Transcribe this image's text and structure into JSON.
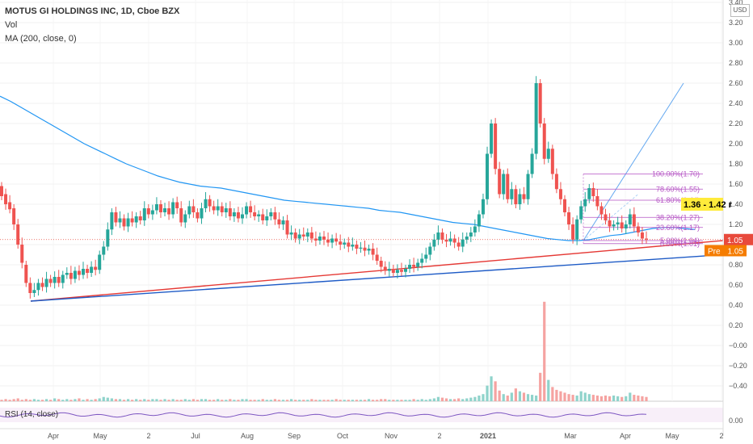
{
  "legend": {
    "title": "MOTUS GI HOLDINGS INC, 1D, Cboe BZX",
    "vol": "Vol",
    "ma": "MA (200, close, 0)"
  },
  "rsi_label": "RSI (14, close)",
  "currency": "USD",
  "colors": {
    "up": "#26a69a",
    "down": "#ef5350",
    "ma": "#2196f3",
    "fib": "#b553c4",
    "red_trend": "#e53935",
    "blue_trend": "#1e5bc6",
    "price_box": "#e84a3c",
    "pre_box": "#f57c00",
    "highlight_box": "#ffeb3b"
  },
  "chart_data": {
    "type": "candlestick",
    "y_axis_ticks": [
      "3.40",
      "3.20",
      "3.00",
      "2.80",
      "2.60",
      "2.40",
      "2.20",
      "2.00",
      "1.80",
      "1.60",
      "1.40",
      "1.20",
      "1.00",
      "0.80",
      "0.60",
      "0.40",
      "0.20",
      "−0.00",
      "−0.20",
      "−0.40"
    ],
    "rsi_axis_ticks": [
      "0.00"
    ],
    "x_axis_ticks": [
      "Apr",
      "May",
      "2",
      "Jul",
      "Aug",
      "Sep",
      "Oct",
      "Nov",
      "2",
      "2021",
      "Mar",
      "Apr",
      "May",
      "2"
    ],
    "current_price_label": "1.05",
    "pre_label": "Pre",
    "pre_value": "1.05",
    "highlight_label": "1.36 - 1.42 r",
    "fib_levels": [
      "100.00%(1.70)",
      "78.60%(1.55)",
      "61.80%(1.44)",
      "38.20%(1.27)",
      "23.60%(1.17)",
      "5.00%(1.04)",
      "0.00%(1.01)"
    ],
    "fib_values": [
      1.7,
      1.55,
      1.44,
      1.27,
      1.17,
      1.04,
      1.01
    ],
    "candles": [
      [
        1.58,
        1.48
      ],
      [
        1.5,
        1.4
      ],
      [
        1.42,
        1.35
      ],
      [
        1.36,
        1.2
      ],
      [
        1.2,
        1.0
      ],
      [
        1.0,
        0.82
      ],
      [
        0.8,
        0.62
      ],
      [
        0.62,
        0.52
      ],
      [
        0.52,
        0.55
      ],
      [
        0.55,
        0.62
      ],
      [
        0.62,
        0.58
      ],
      [
        0.58,
        0.66
      ],
      [
        0.66,
        0.62
      ],
      [
        0.62,
        0.68
      ],
      [
        0.68,
        0.62
      ],
      [
        0.62,
        0.7
      ],
      [
        0.7,
        0.72
      ],
      [
        0.72,
        0.66
      ],
      [
        0.66,
        0.74
      ],
      [
        0.74,
        0.7
      ],
      [
        0.7,
        0.76
      ],
      [
        0.76,
        0.72
      ],
      [
        0.72,
        0.78
      ],
      [
        0.78,
        0.75
      ],
      [
        0.75,
        0.9
      ],
      [
        0.9,
        0.98
      ],
      [
        0.98,
        1.15
      ],
      [
        1.15,
        1.32
      ],
      [
        1.32,
        1.22
      ],
      [
        1.22,
        1.26
      ],
      [
        1.26,
        1.18
      ],
      [
        1.18,
        1.26
      ],
      [
        1.26,
        1.22
      ],
      [
        1.22,
        1.28
      ],
      [
        1.28,
        1.24
      ],
      [
        1.24,
        1.36
      ],
      [
        1.36,
        1.3
      ],
      [
        1.3,
        1.34
      ],
      [
        1.34,
        1.4
      ],
      [
        1.4,
        1.32
      ],
      [
        1.32,
        1.36
      ],
      [
        1.36,
        1.3
      ],
      [
        1.3,
        1.42
      ],
      [
        1.42,
        1.36
      ],
      [
        1.36,
        1.22
      ],
      [
        1.22,
        1.3
      ],
      [
        1.3,
        1.38
      ],
      [
        1.38,
        1.32
      ],
      [
        1.32,
        1.26
      ],
      [
        1.26,
        1.36
      ],
      [
        1.36,
        1.45
      ],
      [
        1.45,
        1.38
      ],
      [
        1.38,
        1.34
      ],
      [
        1.34,
        1.38
      ],
      [
        1.38,
        1.32
      ],
      [
        1.32,
        1.36
      ],
      [
        1.36,
        1.28
      ],
      [
        1.28,
        1.32
      ],
      [
        1.32,
        1.26
      ],
      [
        1.26,
        1.3
      ],
      [
        1.3,
        1.38
      ],
      [
        1.38,
        1.32
      ],
      [
        1.32,
        1.28
      ],
      [
        1.28,
        1.3
      ],
      [
        1.3,
        1.24
      ],
      [
        1.24,
        1.28
      ],
      [
        1.28,
        1.32
      ],
      [
        1.32,
        1.25
      ],
      [
        1.25,
        1.2
      ],
      [
        1.2,
        1.24
      ],
      [
        1.24,
        1.1
      ],
      [
        1.1,
        1.12
      ],
      [
        1.12,
        1.06
      ],
      [
        1.06,
        1.1
      ],
      [
        1.1,
        1.08
      ],
      [
        1.08,
        1.12
      ],
      [
        1.12,
        1.06
      ],
      [
        1.06,
        1.04
      ],
      [
        1.04,
        1.08
      ],
      [
        1.08,
        1.05
      ],
      [
        1.05,
        1.02
      ],
      [
        1.02,
        1.06
      ],
      [
        1.06,
        1.03
      ],
      [
        1.03,
        1.0
      ],
      [
        1.0,
        1.02
      ],
      [
        1.02,
        0.98
      ],
      [
        0.98,
        1.0
      ],
      [
        1.0,
        0.96
      ],
      [
        0.96,
        0.97
      ],
      [
        0.97,
        0.94
      ],
      [
        0.94,
        0.96
      ],
      [
        0.96,
        0.9
      ],
      [
        0.9,
        0.84
      ],
      [
        0.84,
        0.78
      ],
      [
        0.78,
        0.74
      ],
      [
        0.74,
        0.76
      ],
      [
        0.76,
        0.72
      ],
      [
        0.72,
        0.75
      ],
      [
        0.75,
        0.73
      ],
      [
        0.73,
        0.76
      ],
      [
        0.76,
        0.8
      ],
      [
        0.8,
        0.78
      ],
      [
        0.78,
        0.82
      ],
      [
        0.82,
        0.86
      ],
      [
        0.86,
        0.9
      ],
      [
        0.9,
        0.98
      ],
      [
        0.98,
        1.05
      ],
      [
        1.05,
        1.12
      ],
      [
        1.12,
        1.05
      ],
      [
        1.05,
        1.03
      ],
      [
        1.03,
        1.06
      ],
      [
        1.06,
        1.02
      ],
      [
        1.02,
        0.98
      ],
      [
        0.98,
        1.05
      ],
      [
        1.05,
        1.08
      ],
      [
        1.08,
        1.12
      ],
      [
        1.12,
        1.18
      ],
      [
        1.18,
        1.3
      ],
      [
        1.3,
        1.45
      ],
      [
        1.45,
        1.9
      ],
      [
        1.9,
        2.2
      ],
      [
        2.2,
        1.75
      ],
      [
        1.75,
        1.5
      ],
      [
        1.5,
        1.7
      ],
      [
        1.7,
        1.45
      ],
      [
        1.45,
        1.55
      ],
      [
        1.55,
        1.4
      ],
      [
        1.4,
        1.5
      ],
      [
        1.5,
        1.45
      ],
      [
        1.45,
        1.7
      ],
      [
        1.7,
        1.9
      ],
      [
        1.9,
        2.6
      ],
      [
        2.6,
        2.2
      ],
      [
        2.2,
        1.85
      ],
      [
        1.85,
        1.95
      ],
      [
        1.95,
        1.7
      ],
      [
        1.7,
        1.55
      ],
      [
        1.55,
        1.45
      ],
      [
        1.45,
        1.32
      ],
      [
        1.32,
        1.2
      ],
      [
        1.2,
        1.05
      ],
      [
        1.05,
        1.25
      ],
      [
        1.25,
        1.38
      ],
      [
        1.38,
        1.45
      ],
      [
        1.45,
        1.56
      ],
      [
        1.56,
        1.48
      ],
      [
        1.48,
        1.38
      ],
      [
        1.38,
        1.3
      ],
      [
        1.3,
        1.24
      ],
      [
        1.24,
        1.18
      ],
      [
        1.18,
        1.2
      ],
      [
        1.2,
        1.22
      ],
      [
        1.22,
        1.16
      ],
      [
        1.16,
        1.2
      ],
      [
        1.2,
        1.3
      ],
      [
        1.3,
        1.18
      ],
      [
        1.18,
        1.12
      ],
      [
        1.12,
        1.06
      ],
      [
        1.06,
        1.05
      ]
    ],
    "ma200": [
      2.47,
      2.42,
      2.36,
      2.3,
      2.24,
      2.18,
      2.12,
      2.06,
      2.0,
      1.95,
      1.9,
      1.85,
      1.8,
      1.76,
      1.72,
      1.68,
      1.65,
      1.62,
      1.6,
      1.58,
      1.57,
      1.56,
      1.54,
      1.52,
      1.5,
      1.48,
      1.46,
      1.44,
      1.43,
      1.42,
      1.41,
      1.4,
      1.39,
      1.38,
      1.37,
      1.36,
      1.34,
      1.33,
      1.32,
      1.3,
      1.28,
      1.26,
      1.24,
      1.22,
      1.21,
      1.2,
      1.18,
      1.16,
      1.14,
      1.12,
      1.1,
      1.08,
      1.06,
      1.05,
      1.04,
      1.04,
      1.05,
      1.07,
      1.09,
      1.1,
      1.12,
      1.14,
      1.16,
      1.17,
      1.17,
      1.16,
      1.15
    ],
    "volumes": [
      2,
      3,
      2,
      3,
      4,
      2,
      3,
      2,
      3,
      2,
      2,
      3,
      2,
      4,
      3,
      2,
      3,
      2,
      3,
      4,
      2,
      3,
      2,
      3,
      4,
      6,
      5,
      4,
      3,
      3,
      2,
      3,
      2,
      3,
      2,
      3,
      2,
      3,
      3,
      2,
      3,
      2,
      3,
      2,
      2,
      3,
      2,
      3,
      2,
      3,
      3,
      2,
      2,
      3,
      2,
      2,
      3,
      2,
      2,
      3,
      3,
      2,
      2,
      2,
      3,
      2,
      2,
      3,
      2,
      2,
      2,
      3,
      2,
      2,
      2,
      2,
      3,
      2,
      2,
      2,
      2,
      2,
      3,
      2,
      2,
      2,
      2,
      2,
      2,
      2,
      3,
      2,
      2,
      3,
      3,
      2,
      2,
      2,
      2,
      2,
      2,
      3,
      2,
      3,
      2,
      3,
      4,
      6,
      5,
      4,
      3,
      3,
      4,
      3,
      4,
      5,
      6,
      8,
      10,
      22,
      35,
      28,
      15,
      10,
      8,
      12,
      18,
      14,
      12,
      10,
      9,
      8,
      40,
      140,
      30,
      20,
      16,
      14,
      12,
      10,
      9,
      8,
      14,
      12,
      10,
      9,
      8,
      7,
      8,
      7,
      8,
      7,
      6,
      7,
      12,
      9,
      8,
      7,
      6
    ]
  }
}
